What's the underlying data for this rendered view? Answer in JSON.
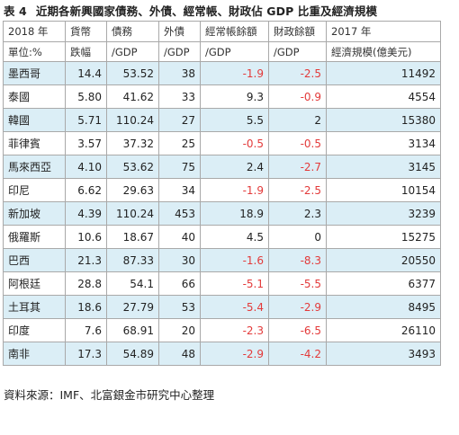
{
  "title": {
    "number": "表 4",
    "text": "近期各新興國家債務、外債、經常帳、財政佔 GDP 比重及經濟規模"
  },
  "header": {
    "row1": [
      "2018 年",
      "貨幣",
      "債務",
      "外債",
      "經常帳餘額",
      "財政餘額",
      "2017 年"
    ],
    "row2": [
      "單位:%",
      "跌幅",
      "/GDP",
      "/GDP",
      "/GDP",
      "/GDP",
      "經濟規模(億美元)"
    ]
  },
  "rows": [
    {
      "country": "墨西哥",
      "fx": "14.4",
      "debt": "53.52",
      "ext": "38",
      "ca": "-1.9",
      "fiscal": "-2.5",
      "gdp": "11492"
    },
    {
      "country": "泰國",
      "fx": "5.80",
      "debt": "41.62",
      "ext": "33",
      "ca": "9.3",
      "fiscal": "-0.9",
      "gdp": "4554"
    },
    {
      "country": "韓國",
      "fx": "5.71",
      "debt": "110.24",
      "ext": "27",
      "ca": "5.5",
      "fiscal": "2",
      "gdp": "15380"
    },
    {
      "country": "菲律賓",
      "fx": "3.57",
      "debt": "37.32",
      "ext": "25",
      "ca": "-0.5",
      "fiscal": "-0.5",
      "gdp": "3134"
    },
    {
      "country": "馬來西亞",
      "fx": "4.10",
      "debt": "53.62",
      "ext": "75",
      "ca": "2.4",
      "fiscal": "-2.7",
      "gdp": "3145"
    },
    {
      "country": "印尼",
      "fx": "6.62",
      "debt": "29.63",
      "ext": "34",
      "ca": "-1.9",
      "fiscal": "-2.5",
      "gdp": "10154"
    },
    {
      "country": "新加坡",
      "fx": "4.39",
      "debt": "110.24",
      "ext": "453",
      "ca": "18.9",
      "fiscal": "2.3",
      "gdp": "3239"
    },
    {
      "country": "俄羅斯",
      "fx": "10.6",
      "debt": "18.67",
      "ext": "40",
      "ca": "4.5",
      "fiscal": "0",
      "gdp": "15275"
    },
    {
      "country": "巴西",
      "fx": "21.3",
      "debt": "87.33",
      "ext": "30",
      "ca": "-1.6",
      "fiscal": "-8.3",
      "gdp": "20550"
    },
    {
      "country": "阿根廷",
      "fx": "28.8",
      "debt": "54.1",
      "ext": "66",
      "ca": "-5.1",
      "fiscal": "-5.5",
      "gdp": "6377"
    },
    {
      "country": "土耳其",
      "fx": "18.6",
      "debt": "27.79",
      "ext": "53",
      "ca": "-5.4",
      "fiscal": "-2.9",
      "gdp": "8495"
    },
    {
      "country": "印度",
      "fx": "7.6",
      "debt": "68.91",
      "ext": "20",
      "ca": "-2.3",
      "fiscal": "-6.5",
      "gdp": "26110"
    },
    {
      "country": "南非",
      "fx": "17.3",
      "debt": "54.89",
      "ext": "48",
      "ca": "-2.9",
      "fiscal": "-4.2",
      "gdp": "3493"
    }
  ],
  "colors": {
    "shade": "#dbeef6",
    "negative": "#e33a3a",
    "border": "#a9a9a9"
  },
  "source": "資料來源：IMF、北富銀金市研究中心整理"
}
